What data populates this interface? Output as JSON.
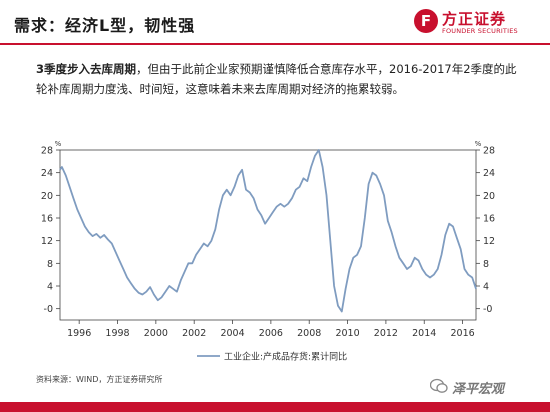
{
  "header": {
    "title": "需求：经济L型，韧性强",
    "logo_cn": "方正证券",
    "logo_en": "FOUNDER SECURITIES"
  },
  "desc": {
    "bold": "3季度步入去库周期",
    "text": "，但由于此前企业家预期谨慎降低合意库存水平，2016-2017年2季度的此轮补库周期力度浅、时间短，这意味着未来去库周期对经济的拖累较弱。"
  },
  "chart_data": {
    "type": "line",
    "unit_left": "%",
    "unit_right": "%",
    "ylim": [
      -2,
      28
    ],
    "yticks": [
      0,
      4,
      8,
      12,
      16,
      20,
      24,
      28
    ],
    "ytick_labels": [
      "-0",
      "4",
      "8",
      "12",
      "16",
      "20",
      "24",
      "28"
    ],
    "xlim": [
      1995.0,
      2016.7
    ],
    "xticks": [
      1996,
      1998,
      2000,
      2002,
      2004,
      2006,
      2008,
      2010,
      2012,
      2014,
      2016
    ],
    "xtick_labels": [
      "1996",
      "1998",
      "2000",
      "2002",
      "2004",
      "2006",
      "2008",
      "2010",
      "2012",
      "2014",
      "2016"
    ],
    "legend_position": "bottom-center",
    "series": [
      {
        "name": "工业企业:产成品存货:累计同比",
        "color": "#7f9cc0",
        "x": [
          1995.0,
          1995.1,
          1995.3,
          1995.5,
          1995.7,
          1995.9,
          1996.1,
          1996.3,
          1996.5,
          1996.7,
          1996.9,
          1997.1,
          1997.3,
          1997.5,
          1997.7,
          1997.9,
          1998.1,
          1998.3,
          1998.5,
          1998.7,
          1998.9,
          1999.1,
          1999.3,
          1999.5,
          1999.7,
          1999.9,
          2000.1,
          2000.3,
          2000.5,
          2000.7,
          2000.9,
          2001.1,
          2001.3,
          2001.5,
          2001.7,
          2001.9,
          2002.1,
          2002.3,
          2002.5,
          2002.7,
          2002.9,
          2003.1,
          2003.3,
          2003.5,
          2003.7,
          2003.9,
          2004.1,
          2004.3,
          2004.5,
          2004.7,
          2004.9,
          2005.1,
          2005.3,
          2005.5,
          2005.7,
          2005.9,
          2006.1,
          2006.3,
          2006.5,
          2006.7,
          2006.9,
          2007.1,
          2007.3,
          2007.5,
          2007.7,
          2007.9,
          2008.1,
          2008.3,
          2008.5,
          2008.7,
          2008.9,
          2009.1,
          2009.3,
          2009.5,
          2009.7,
          2009.9,
          2010.1,
          2010.3,
          2010.5,
          2010.7,
          2010.9,
          2011.1,
          2011.3,
          2011.5,
          2011.7,
          2011.9,
          2012.1,
          2012.3,
          2012.5,
          2012.7,
          2012.9,
          2013.1,
          2013.3,
          2013.5,
          2013.7,
          2013.9,
          2014.1,
          2014.3,
          2014.5,
          2014.7,
          2014.9,
          2015.1,
          2015.3,
          2015.5,
          2015.7,
          2015.9,
          2016.1,
          2016.3,
          2016.5,
          2016.7
        ],
        "y": [
          24.5,
          25.0,
          23.5,
          21.5,
          19.5,
          17.5,
          16.0,
          14.5,
          13.5,
          12.8,
          13.2,
          12.5,
          13.0,
          12.2,
          11.5,
          10.0,
          8.5,
          7.0,
          5.5,
          4.5,
          3.5,
          2.8,
          2.5,
          3.0,
          3.8,
          2.5,
          1.5,
          2.0,
          3.0,
          4.0,
          3.5,
          3.0,
          5.0,
          6.5,
          8.0,
          8.0,
          9.5,
          10.5,
          11.5,
          11.0,
          12.0,
          14.0,
          17.5,
          20.0,
          21.0,
          20.0,
          21.5,
          23.5,
          24.5,
          21.0,
          20.5,
          19.5,
          17.5,
          16.5,
          15.0,
          16.0,
          17.0,
          18.0,
          18.5,
          18.0,
          18.5,
          19.5,
          21.0,
          21.5,
          23.0,
          22.5,
          25.0,
          27.0,
          28.0,
          25.0,
          20.0,
          12.0,
          4.0,
          0.5,
          -0.5,
          3.5,
          7.0,
          9.0,
          9.5,
          11.0,
          16.0,
          22.0,
          24.0,
          23.5,
          22.0,
          20.0,
          15.5,
          13.5,
          11.0,
          9.0,
          8.0,
          7.0,
          7.5,
          9.0,
          8.5,
          7.0,
          6.0,
          5.5,
          6.0,
          7.0,
          9.5,
          13.0,
          15.0,
          14.5,
          12.5,
          10.5,
          7.0,
          6.0,
          5.5,
          3.5
        ]
      }
    ]
  },
  "source": "资料来源：WIND，方正证券研究所",
  "watermark": "泽平宏观",
  "colors": {
    "brand_red": "#c8102e",
    "series_blue": "#7f9cc0"
  }
}
